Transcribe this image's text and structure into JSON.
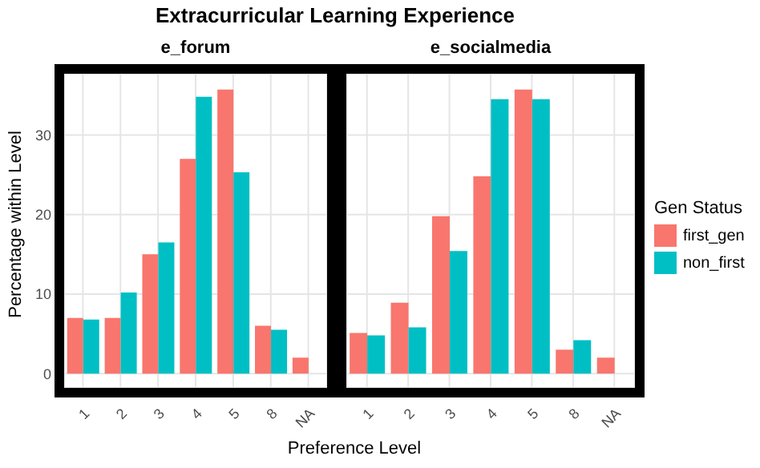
{
  "chart_data": [
    {
      "type": "bar",
      "title": "Extracurricular Learning Experience",
      "subtitle": "e_forum",
      "xlabel": "Preference Level",
      "ylabel": "Percentage within Level",
      "categories": [
        "1",
        "2",
        "3",
        "4",
        "5",
        "8",
        "NA"
      ],
      "series": [
        {
          "name": "first_gen",
          "color": "#f8766d",
          "values": [
            7.0,
            7.0,
            15.0,
            27.0,
            35.7,
            6.0,
            2.0
          ]
        },
        {
          "name": "non_first",
          "color": "#00bfc4",
          "values": [
            6.8,
            10.2,
            16.5,
            34.8,
            25.3,
            5.5,
            null
          ]
        }
      ],
      "ylim": [
        -1.8,
        37.7
      ],
      "yticks": [
        0,
        10,
        20,
        30
      ],
      "grid": true,
      "legend": "right",
      "legend_title": "Gen Status"
    },
    {
      "type": "bar",
      "subtitle": "e_socialmedia",
      "categories": [
        "1",
        "2",
        "3",
        "4",
        "5",
        "8",
        "NA"
      ],
      "series": [
        {
          "color": "#f8766d",
          "values": [
            5.1,
            8.9,
            19.8,
            24.8,
            35.7,
            3.0,
            2.0
          ]
        },
        {
          "color": "#00bfc4",
          "values": [
            4.8,
            5.8,
            15.4,
            34.5,
            34.5,
            4.2,
            null
          ]
        }
      ],
      "ylim": [
        -1.8,
        37.7
      ],
      "yticks": [
        0,
        10,
        20,
        30
      ],
      "grid": true,
      "tick_labels": "x"
    }
  ]
}
